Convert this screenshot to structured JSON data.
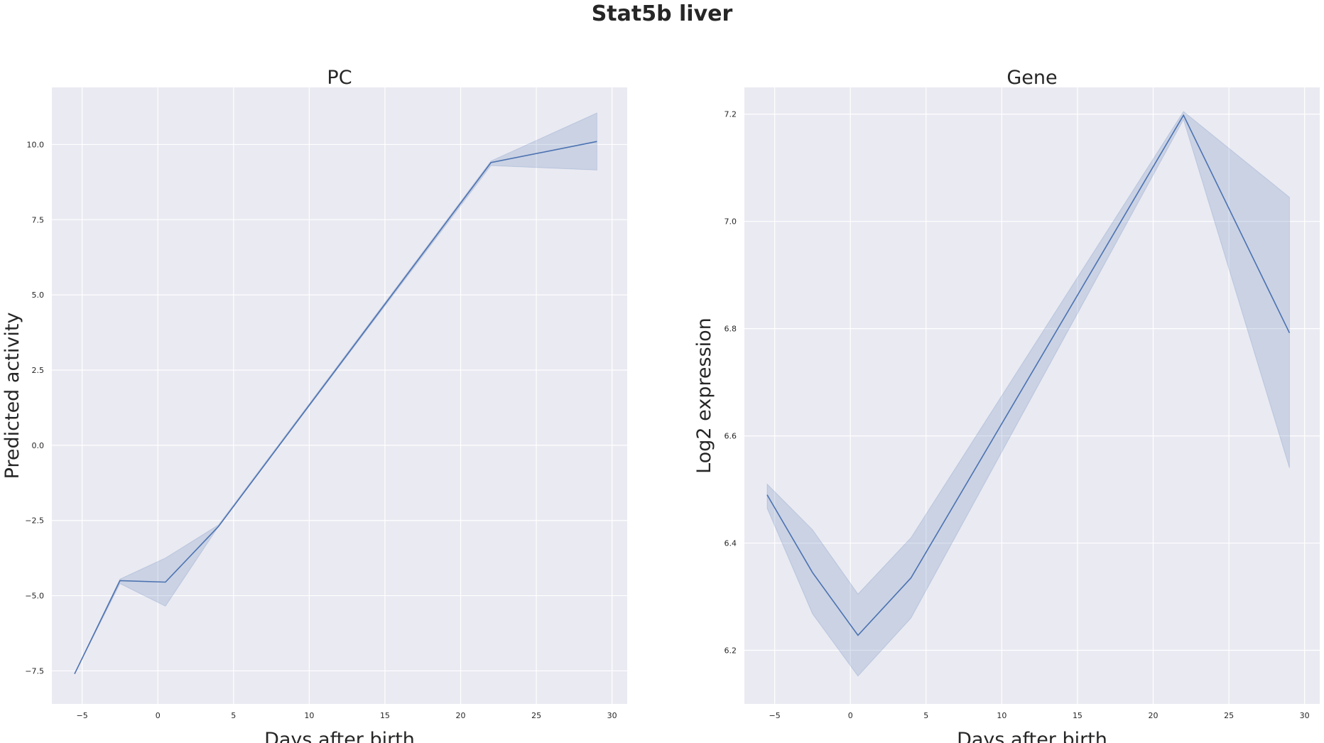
{
  "figure": {
    "title": "Stat5b liver"
  },
  "chart_data": [
    {
      "type": "line",
      "title": "PC",
      "xlabel": "Days after birth",
      "ylabel": "Predicted activity",
      "xlim": [
        -7,
        31
      ],
      "ylim": [
        -8.6,
        11.9
      ],
      "xticks": [
        -5,
        0,
        5,
        10,
        15,
        20,
        25,
        30
      ],
      "xtick_labels": [
        "−5",
        "0",
        "5",
        "10",
        "15",
        "20",
        "25",
        "30"
      ],
      "yticks": [
        -7.5,
        -5.0,
        -2.5,
        0.0,
        2.5,
        5.0,
        7.5,
        10.0
      ],
      "ytick_labels": [
        "−7.5",
        "−5.0",
        "−2.5",
        "0.0",
        "2.5",
        "5.0",
        "7.5",
        "10.0"
      ],
      "grid": true,
      "line_color": "#4c72b0",
      "band_color": "#4c72b0",
      "series": [
        {
          "x": [
            -5.5,
            -2.5,
            0.5,
            4,
            22,
            29
          ],
          "y": [
            -7.6,
            -4.5,
            -4.55,
            -2.7,
            9.4,
            10.1
          ],
          "ci_low": [
            -7.6,
            -4.6,
            -5.35,
            -2.7,
            9.3,
            9.15
          ],
          "ci_high": [
            -7.6,
            -4.45,
            -3.75,
            -2.65,
            9.45,
            11.05
          ]
        }
      ]
    },
    {
      "type": "line",
      "title": "Gene",
      "xlabel": "Days after birth",
      "ylabel": "Log2 expression",
      "xlim": [
        -7,
        31
      ],
      "ylim": [
        6.1,
        7.25
      ],
      "xticks": [
        -5,
        0,
        5,
        10,
        15,
        20,
        25,
        30
      ],
      "xtick_labels": [
        "−5",
        "0",
        "5",
        "10",
        "15",
        "20",
        "25",
        "30"
      ],
      "yticks": [
        6.2,
        6.4,
        6.6,
        6.8,
        7.0,
        7.2
      ],
      "ytick_labels": [
        "6.2",
        "6.4",
        "6.6",
        "6.8",
        "7.0",
        "7.2"
      ],
      "grid": true,
      "line_color": "#4c72b0",
      "band_color": "#4c72b0",
      "series": [
        {
          "x": [
            -5.5,
            -2.5,
            0.5,
            4,
            22,
            29
          ],
          "y": [
            6.49,
            6.345,
            6.228,
            6.335,
            7.198,
            6.792
          ],
          "ci_low": [
            6.465,
            6.268,
            6.152,
            6.26,
            7.19,
            6.54
          ],
          "ci_high": [
            6.51,
            6.425,
            6.305,
            6.41,
            7.205,
            7.045
          ]
        }
      ]
    }
  ]
}
